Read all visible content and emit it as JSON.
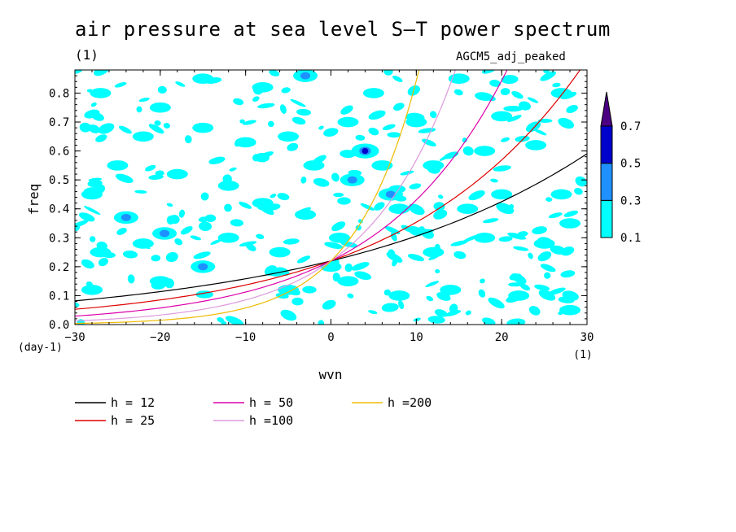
{
  "header": {
    "title": "air pressure at sea level S–T power spectrum",
    "unit": "(1)",
    "model": "AGCM5_adj_peaked"
  },
  "chart_data": {
    "type": "contour",
    "title": "air pressure at sea level S–T power spectrum",
    "xlabel": "wvn",
    "ylabel": "freq",
    "xlim": [
      -30,
      30
    ],
    "ylim": [
      0,
      0.88
    ],
    "xticks": [
      -30,
      -20,
      -10,
      0,
      10,
      20,
      30
    ],
    "yticks": [
      0.0,
      0.1,
      0.2,
      0.3,
      0.4,
      0.5,
      0.6,
      0.7,
      0.8
    ],
    "x_unit": "(1)",
    "y_unit": "(day-1)",
    "colorbar": {
      "levels": [
        0.1,
        0.3,
        0.5,
        0.7
      ],
      "labels": [
        "0.1",
        "0.3",
        "0.5",
        "0.7"
      ],
      "colors": [
        "#00ffff",
        "#1e90ff",
        "#0000cd",
        "#4b0082"
      ],
      "extend": "max"
    },
    "dispersion_curves": [
      {
        "name": "h = 12",
        "h": 12,
        "color": "#000000"
      },
      {
        "name": "h = 25",
        "h": 25,
        "color": "#dd0000"
      },
      {
        "name": "h = 50",
        "h": 50,
        "color": "#dd00aa"
      },
      {
        "name": "h =100",
        "h": 100,
        "color": "#dd99dd"
      },
      {
        "name": "h =200",
        "h": 200,
        "color": "#eebb00"
      }
    ],
    "contour_blobs": [
      {
        "x": -24,
        "y": 0.37,
        "level": 2
      },
      {
        "x": -19.5,
        "y": 0.315,
        "level": 2
      },
      {
        "x": 4,
        "y": 0.6,
        "level": 3
      },
      {
        "x": 2.5,
        "y": 0.5,
        "level": 2
      },
      {
        "x": -15,
        "y": 0.2,
        "level": 2
      },
      {
        "x": -3,
        "y": 0.86,
        "level": 2
      },
      {
        "x": -5,
        "y": 0.65,
        "level": 1
      },
      {
        "x": -27,
        "y": 0.8,
        "level": 1
      },
      {
        "x": -20,
        "y": 0.75,
        "level": 1
      },
      {
        "x": -15,
        "y": 0.68,
        "level": 1
      },
      {
        "x": -10,
        "y": 0.63,
        "level": 1
      },
      {
        "x": -25,
        "y": 0.55,
        "level": 1
      },
      {
        "x": -18,
        "y": 0.52,
        "level": 1
      },
      {
        "x": -12,
        "y": 0.48,
        "level": 1
      },
      {
        "x": -28,
        "y": 0.45,
        "level": 1
      },
      {
        "x": -8,
        "y": 0.42,
        "level": 1
      },
      {
        "x": -3,
        "y": 0.38,
        "level": 1
      },
      {
        "x": -22,
        "y": 0.28,
        "level": 1
      },
      {
        "x": -27,
        "y": 0.25,
        "level": 1
      },
      {
        "x": -12,
        "y": 0.3,
        "level": 1
      },
      {
        "x": -6,
        "y": 0.25,
        "level": 1
      },
      {
        "x": 1,
        "y": 0.3,
        "level": 1
      },
      {
        "x": -28,
        "y": 0.12,
        "level": 1
      },
      {
        "x": -20,
        "y": 0.15,
        "level": 1
      },
      {
        "x": -5,
        "y": 0.12,
        "level": 1
      },
      {
        "x": 2,
        "y": 0.15,
        "level": 1
      },
      {
        "x": 8,
        "y": 0.1,
        "level": 1
      },
      {
        "x": 14,
        "y": 0.12,
        "level": 1
      },
      {
        "x": 22,
        "y": 0.1,
        "level": 1
      },
      {
        "x": 28,
        "y": 0.05,
        "level": 1
      },
      {
        "x": 12,
        "y": 0.25,
        "level": 1
      },
      {
        "x": 18,
        "y": 0.3,
        "level": 1
      },
      {
        "x": 25,
        "y": 0.28,
        "level": 1
      },
      {
        "x": 28,
        "y": 0.35,
        "level": 1
      },
      {
        "x": 8,
        "y": 0.4,
        "level": 1
      },
      {
        "x": 20,
        "y": 0.45,
        "level": 1
      },
      {
        "x": 27,
        "y": 0.45,
        "level": 1
      },
      {
        "x": 6,
        "y": 0.55,
        "level": 1
      },
      {
        "x": 12,
        "y": 0.55,
        "level": 1
      },
      {
        "x": 18,
        "y": 0.6,
        "level": 1
      },
      {
        "x": 24,
        "y": 0.62,
        "level": 1
      },
      {
        "x": 10,
        "y": 0.7,
        "level": 1
      },
      {
        "x": 20,
        "y": 0.72,
        "level": 1
      },
      {
        "x": 27,
        "y": 0.8,
        "level": 1
      },
      {
        "x": 15,
        "y": 0.85,
        "level": 1
      },
      {
        "x": 5,
        "y": 0.8,
        "level": 1
      },
      {
        "x": -8,
        "y": 0.82,
        "level": 1
      },
      {
        "x": -15,
        "y": 0.85,
        "level": 1
      },
      {
        "x": -22,
        "y": 0.65,
        "level": 1
      },
      {
        "x": 2,
        "y": 0.7,
        "level": 1
      },
      {
        "x": 7,
        "y": 0.45,
        "level": 2
      },
      {
        "x": 16,
        "y": 0.4,
        "level": 1
      },
      {
        "x": -2,
        "y": 0.55,
        "level": 1
      },
      {
        "x": 0,
        "y": 0.2,
        "level": 1
      }
    ]
  }
}
